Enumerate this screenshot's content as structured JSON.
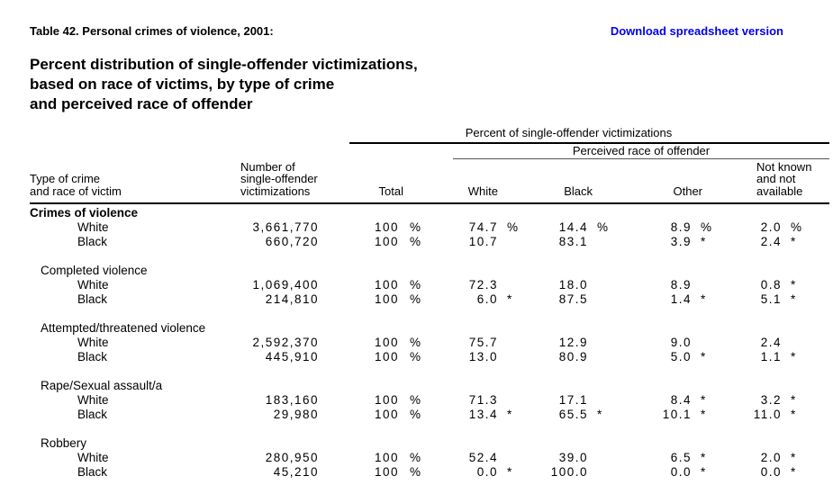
{
  "page": {
    "caption": "Table 42. Personal crimes of violence, 2001:",
    "download_link": "Download spreadsheet version",
    "link_color": "#0000ee",
    "title_lines": [
      "Percent distribution of single-offender victimizations,",
      "based on race of victims, by type of crime",
      "and perceived race of offender"
    ]
  },
  "table": {
    "span_header": "Percent of single-offender victimizations",
    "sub_span_header": "Perceived race of offender",
    "col_headers": {
      "crime": [
        "Type of crime",
        "and race of victim"
      ],
      "number": [
        "Number of",
        "single-offender",
        "victimizations"
      ],
      "total": "Total",
      "white": "White",
      "black": "Black",
      "other": "Other",
      "notknown": [
        "Not known",
        "and not",
        "available"
      ]
    },
    "rows": [
      {
        "kind": "section",
        "indent": 0,
        "label": "Crimes of violence"
      },
      {
        "kind": "data",
        "label": "White",
        "number": "3,661,770",
        "cells": [
          [
            "100",
            "%"
          ],
          [
            "74.7",
            "%"
          ],
          [
            "14.4",
            "%"
          ],
          [
            "8.9",
            "%"
          ],
          [
            "2.0",
            "%"
          ]
        ]
      },
      {
        "kind": "data",
        "label": "Black",
        "number": "660,720",
        "cells": [
          [
            "100",
            "%"
          ],
          [
            "10.7",
            ""
          ],
          [
            "83.1",
            ""
          ],
          [
            "3.9",
            "*"
          ],
          [
            "2.4",
            "*"
          ]
        ]
      },
      {
        "kind": "gap"
      },
      {
        "kind": "section",
        "indent": 1,
        "label": "Completed violence"
      },
      {
        "kind": "data",
        "label": "White",
        "number": "1,069,400",
        "cells": [
          [
            "100",
            "%"
          ],
          [
            "72.3",
            ""
          ],
          [
            "18.0",
            ""
          ],
          [
            "8.9",
            ""
          ],
          [
            "0.8",
            "*"
          ]
        ]
      },
      {
        "kind": "data",
        "label": "Black",
        "number": "214,810",
        "cells": [
          [
            "100",
            "%"
          ],
          [
            "6.0",
            "*"
          ],
          [
            "87.5",
            ""
          ],
          [
            "1.4",
            "*"
          ],
          [
            "5.1",
            "*"
          ]
        ]
      },
      {
        "kind": "gap"
      },
      {
        "kind": "section",
        "indent": 1,
        "label": "Attempted/threatened violence"
      },
      {
        "kind": "data",
        "label": "White",
        "number": "2,592,370",
        "cells": [
          [
            "100",
            "%"
          ],
          [
            "75.7",
            ""
          ],
          [
            "12.9",
            ""
          ],
          [
            "9.0",
            ""
          ],
          [
            "2.4",
            ""
          ]
        ]
      },
      {
        "kind": "data",
        "label": "Black",
        "number": "445,910",
        "cells": [
          [
            "100",
            "%"
          ],
          [
            "13.0",
            ""
          ],
          [
            "80.9",
            ""
          ],
          [
            "5.0",
            "*"
          ],
          [
            "1.1",
            "*"
          ]
        ]
      },
      {
        "kind": "gap"
      },
      {
        "kind": "section",
        "indent": 1,
        "label": "Rape/Sexual assault/a"
      },
      {
        "kind": "data",
        "label": "White",
        "number": "183,160",
        "cells": [
          [
            "100",
            "%"
          ],
          [
            "71.3",
            ""
          ],
          [
            "17.1",
            ""
          ],
          [
            "8.4",
            "*"
          ],
          [
            "3.2",
            "*"
          ]
        ]
      },
      {
        "kind": "data",
        "label": "Black",
        "number": "29,980",
        "cells": [
          [
            "100",
            "%"
          ],
          [
            "13.4",
            "*"
          ],
          [
            "65.5",
            "*"
          ],
          [
            "10.1",
            "*"
          ],
          [
            "11.0",
            "*"
          ]
        ]
      },
      {
        "kind": "gap"
      },
      {
        "kind": "section",
        "indent": 1,
        "label": "Robbery"
      },
      {
        "kind": "data",
        "label": "White",
        "number": "280,950",
        "cells": [
          [
            "100",
            "%"
          ],
          [
            "52.4",
            ""
          ],
          [
            "39.0",
            ""
          ],
          [
            "6.5",
            "*"
          ],
          [
            "2.0",
            "*"
          ]
        ]
      },
      {
        "kind": "data",
        "label": "Black",
        "number": "45,210",
        "cells": [
          [
            "100",
            "%"
          ],
          [
            "0.0",
            "*"
          ],
          [
            "100.0",
            ""
          ],
          [
            "0.0",
            "*"
          ],
          [
            "0.0",
            "*"
          ]
        ]
      }
    ]
  }
}
